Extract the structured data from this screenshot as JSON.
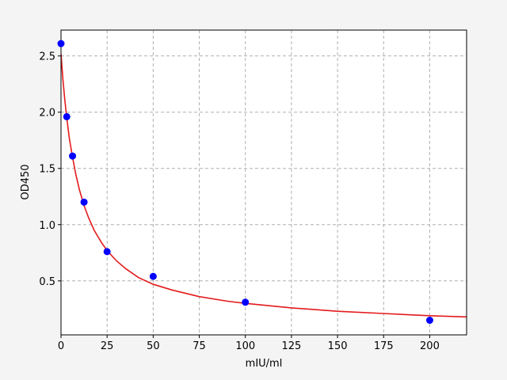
{
  "chart_data": {
    "type": "scatter",
    "x_label": "mIU/ml",
    "y_label": "OD450",
    "xlim": [
      0,
      220
    ],
    "ylim": [
      0.02,
      2.73
    ],
    "xticks": [
      0,
      25,
      50,
      75,
      100,
      125,
      150,
      175,
      200
    ],
    "yticks": [
      0.5,
      {
        "value": 1,
        "label": "1.0"
      },
      1.5,
      {
        "value": 2,
        "label": "2.0"
      },
      2.5
    ],
    "grid": true,
    "series": [
      {
        "style": "markers",
        "color": "#0000ff",
        "x": [
          0,
          3.125,
          6.25,
          12.5,
          25,
          50,
          100,
          200
        ],
        "values": [
          2.61,
          1.96,
          1.61,
          1.2,
          0.76,
          0.54,
          0.31,
          0.15
        ]
      },
      {
        "style": "line",
        "color": "#e41a1c",
        "x": [
          0,
          1,
          2,
          3.125,
          4.5,
          6.25,
          8,
          10,
          12.5,
          15,
          18,
          22,
          25,
          30,
          35,
          42,
          50,
          60,
          75,
          90,
          100,
          125,
          150,
          175,
          200,
          220
        ],
        "values": [
          2.52,
          2.3,
          2.12,
          1.95,
          1.77,
          1.6,
          1.45,
          1.31,
          1.17,
          1.06,
          0.95,
          0.84,
          0.77,
          0.68,
          0.61,
          0.53,
          0.47,
          0.42,
          0.36,
          0.32,
          0.3,
          0.26,
          0.23,
          0.21,
          0.19,
          0.18
        ]
      }
    ]
  }
}
